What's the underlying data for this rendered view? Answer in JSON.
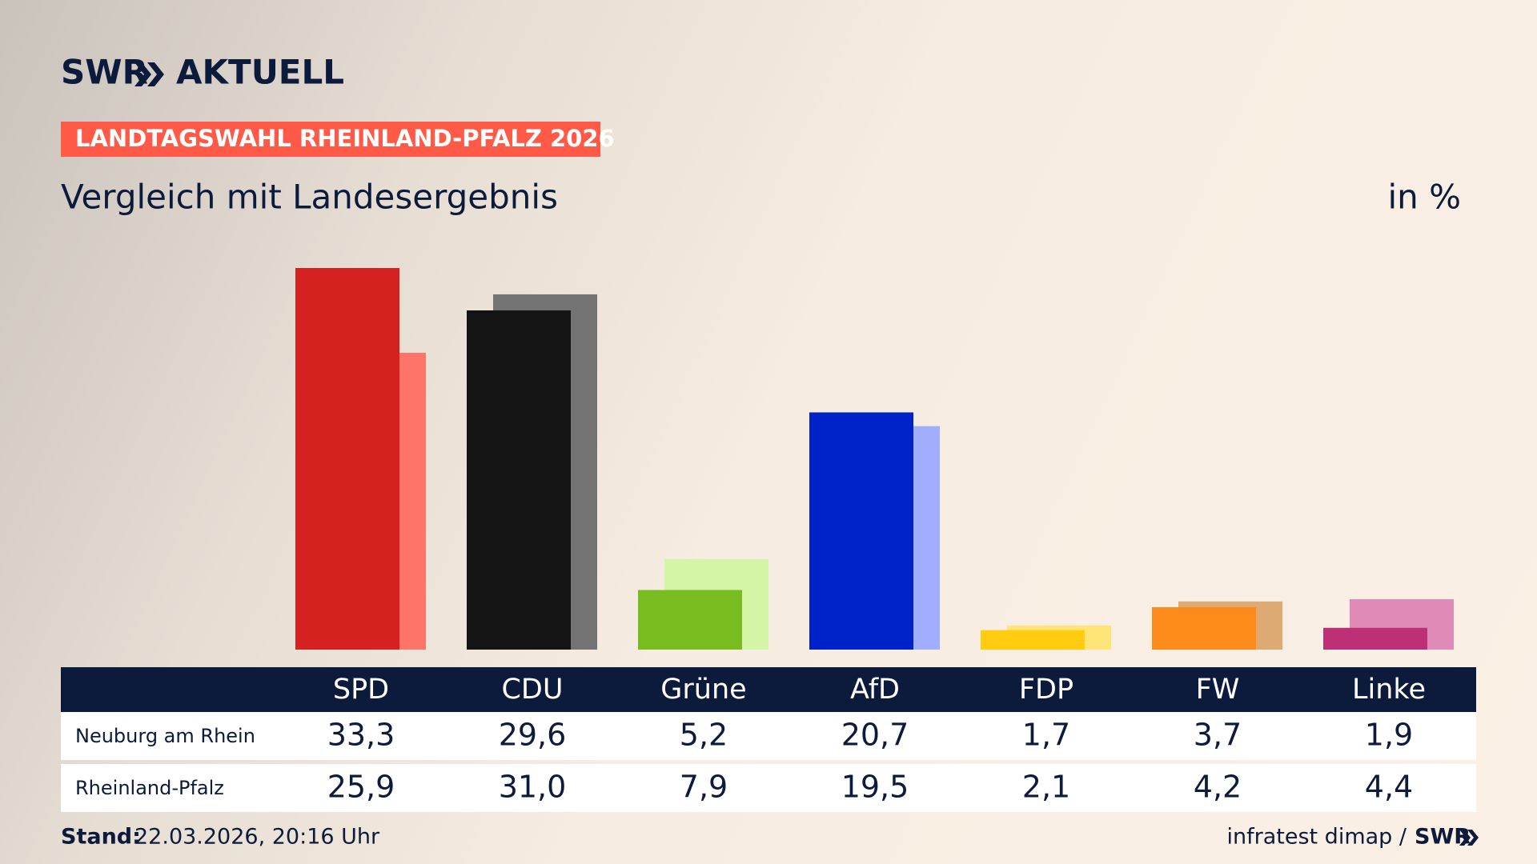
{
  "header": {
    "brand": "SWR",
    "brand_suffix": "AKTUELL",
    "kicker": "LANDTAGSWAHL RHEINLAND-PFALZ 2026"
  },
  "chart_data": {
    "type": "bar",
    "title": "Vergleich mit Landesergebnis",
    "unit": "in %",
    "categories": [
      "SPD",
      "CDU",
      "Grüne",
      "AfD",
      "FDP",
      "FW",
      "Linke"
    ],
    "series": [
      {
        "name": "Neuburg am Rhein",
        "colors": [
          "#d52120",
          "#141414",
          "#78bc1f",
          "#0022c9",
          "#ffcc10",
          "#fd8b1b",
          "#be3075"
        ],
        "values": [
          33.3,
          29.6,
          5.2,
          20.7,
          1.7,
          3.7,
          1.9
        ],
        "value_labels": [
          "33,3",
          "29,6",
          "5,2",
          "20,7",
          "1,7",
          "3,7",
          "1,9"
        ]
      },
      {
        "name": "Rheinland-Pfalz",
        "colors": [
          "#ff7468",
          "#737373",
          "#d5f5a6",
          "#a1aefe",
          "#ffe577",
          "#deaa74",
          "#df8ab7"
        ],
        "values": [
          25.9,
          31.0,
          7.9,
          19.5,
          2.1,
          4.2,
          4.4
        ],
        "value_labels": [
          "25,9",
          "31,0",
          "7,9",
          "19,5",
          "2,1",
          "4,2",
          "4,4"
        ]
      }
    ]
  },
  "footer": {
    "stand_label": "Stand:",
    "stand": "22.03.2026, 20:16 Uhr",
    "source": "infratest dimap /",
    "source_brand": "SWR"
  }
}
